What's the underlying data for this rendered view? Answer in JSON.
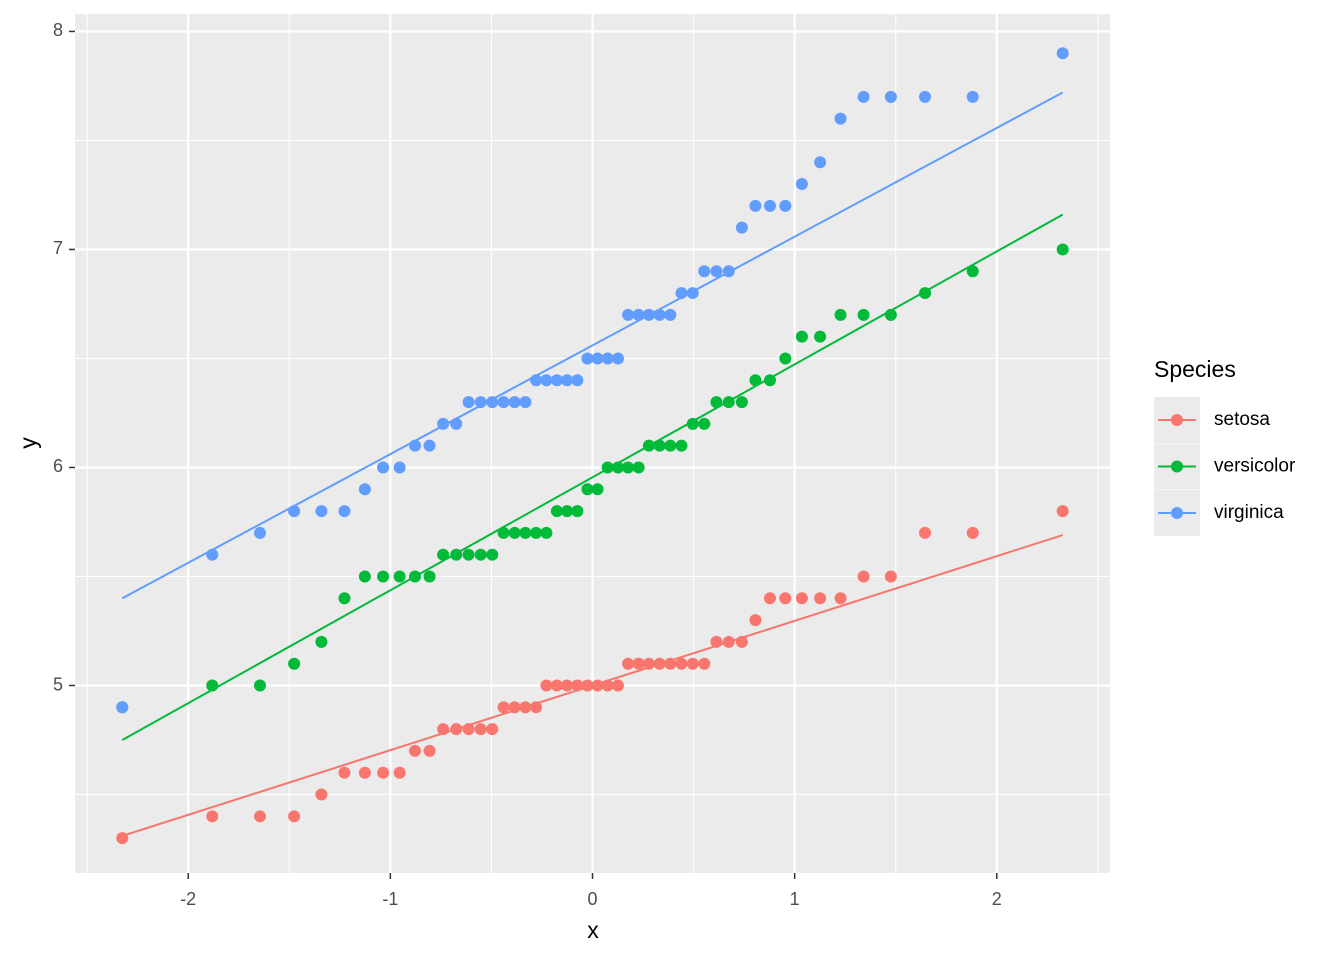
{
  "chart_data": {
    "type": "scatter",
    "x_label": "x",
    "y_label": "y",
    "legend_title": "Species",
    "legend_position": "right",
    "grid": true,
    "xlim": [
      -2.56,
      2.56
    ],
    "ylim": [
      4.14,
      8.08
    ],
    "xticks": [
      -2,
      -1,
      0,
      1,
      2
    ],
    "yticks": [
      5,
      6,
      7,
      8
    ],
    "x_minor_grid": [
      -2.5,
      -1.5,
      -0.5,
      0.5,
      1.5,
      2.5
    ],
    "y_minor_grid": [
      4.5,
      5.5,
      6.5,
      7.5
    ],
    "x": [
      -2.326,
      -1.881,
      -1.645,
      -1.476,
      -1.341,
      -1.227,
      -1.126,
      -1.036,
      -0.954,
      -0.878,
      -0.806,
      -0.739,
      -0.674,
      -0.613,
      -0.553,
      -0.496,
      -0.44,
      -0.385,
      -0.332,
      -0.279,
      -0.228,
      -0.176,
      -0.126,
      -0.075,
      -0.025,
      0.025,
      0.075,
      0.126,
      0.176,
      0.228,
      0.279,
      0.332,
      0.385,
      0.44,
      0.496,
      0.553,
      0.613,
      0.674,
      0.739,
      0.806,
      0.878,
      0.954,
      1.036,
      1.126,
      1.227,
      1.341,
      1.476,
      1.645,
      1.881,
      2.326
    ],
    "line_x": [
      -2.326,
      2.326
    ],
    "series": [
      {
        "name": "setosa",
        "color": "#f8766d",
        "values": [
          4.3,
          4.4,
          4.4,
          4.4,
          4.5,
          4.6,
          4.6,
          4.6,
          4.6,
          4.7,
          4.7,
          4.8,
          4.8,
          4.8,
          4.8,
          4.8,
          4.9,
          4.9,
          4.9,
          4.9,
          5.0,
          5.0,
          5.0,
          5.0,
          5.0,
          5.0,
          5.0,
          5.0,
          5.1,
          5.1,
          5.1,
          5.1,
          5.1,
          5.1,
          5.1,
          5.1,
          5.2,
          5.2,
          5.2,
          5.3,
          5.4,
          5.4,
          5.4,
          5.4,
          5.4,
          5.5,
          5.5,
          5.7,
          5.7,
          5.8
        ],
        "line_values": [
          4.31,
          5.69
        ]
      },
      {
        "name": "versicolor",
        "color": "#00ba38",
        "values": [
          4.9,
          5.0,
          5.0,
          5.1,
          5.2,
          5.4,
          5.5,
          5.5,
          5.5,
          5.5,
          5.5,
          5.6,
          5.6,
          5.6,
          5.6,
          5.6,
          5.7,
          5.7,
          5.7,
          5.7,
          5.7,
          5.8,
          5.8,
          5.8,
          5.9,
          5.9,
          6.0,
          6.0,
          6.0,
          6.0,
          6.1,
          6.1,
          6.1,
          6.1,
          6.2,
          6.2,
          6.3,
          6.3,
          6.3,
          6.4,
          6.4,
          6.5,
          6.6,
          6.6,
          6.7,
          6.7,
          6.7,
          6.8,
          6.9,
          7.0
        ],
        "line_values": [
          4.75,
          7.16
        ]
      },
      {
        "name": "virginica",
        "color": "#619cff",
        "values": [
          4.9,
          5.6,
          5.7,
          5.8,
          5.8,
          5.8,
          5.9,
          6.0,
          6.0,
          6.1,
          6.1,
          6.2,
          6.2,
          6.3,
          6.3,
          6.3,
          6.3,
          6.3,
          6.3,
          6.4,
          6.4,
          6.4,
          6.4,
          6.4,
          6.5,
          6.5,
          6.5,
          6.5,
          6.7,
          6.7,
          6.7,
          6.7,
          6.7,
          6.8,
          6.8,
          6.9,
          6.9,
          6.9,
          7.1,
          7.2,
          7.2,
          7.2,
          7.3,
          7.4,
          7.6,
          7.7,
          7.7,
          7.7,
          7.7,
          7.9
        ],
        "line_values": [
          5.4,
          7.72
        ]
      }
    ]
  }
}
